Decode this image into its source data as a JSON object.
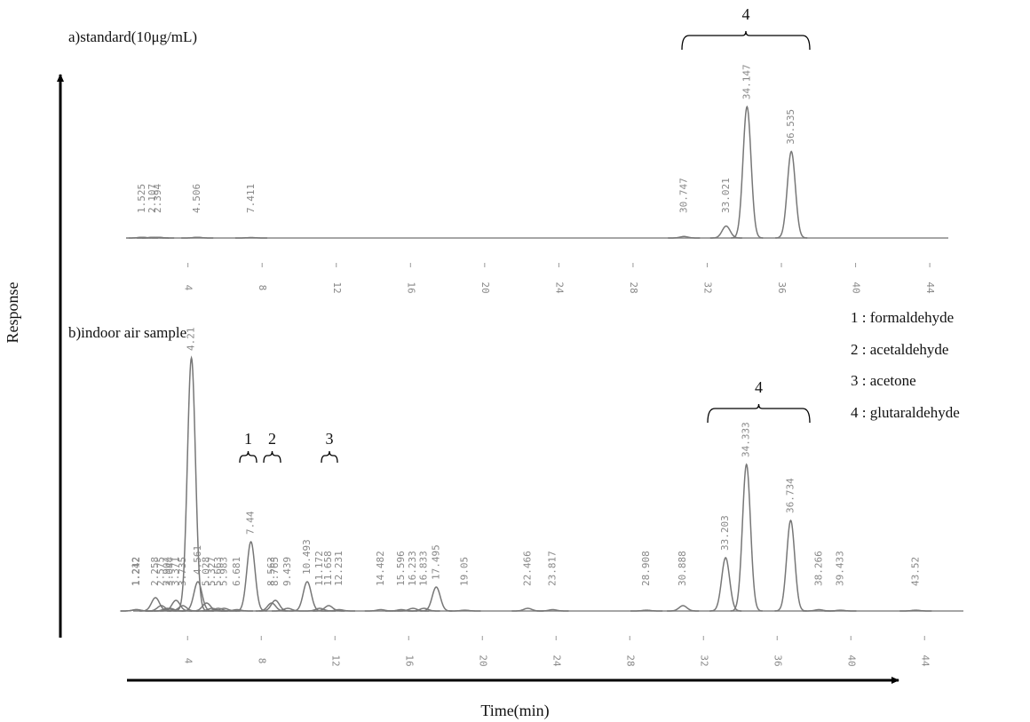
{
  "chart_data": [
    {
      "type": "chromatogram",
      "title": "a)standard(10μg/mL)",
      "x": [
        1.525,
        2.107,
        2.394,
        4.506,
        7.411,
        30.747,
        33.021,
        34.147,
        36.535
      ],
      "values": [
        0.5,
        0.5,
        0.5,
        0.5,
        0.3,
        1,
        8,
        88,
        58
      ],
      "xlim": [
        1,
        45
      ],
      "ylim": [
        0,
        100
      ],
      "xticks": [
        4,
        8,
        12,
        16,
        20,
        24,
        28,
        32,
        36,
        40,
        44
      ],
      "annotations": [
        "4"
      ]
    },
    {
      "type": "chromatogram",
      "title": "b)indoor air sample",
      "x": [
        1.212,
        1.242,
        2.258,
        2.575,
        2.904,
        3.044,
        3.371,
        3.735,
        4.21,
        4.561,
        5.028,
        5.327,
        5.663,
        5.983,
        6.681,
        7.44,
        8.563,
        8.765,
        9.439,
        10.493,
        11.172,
        11.658,
        12.231,
        14.482,
        15.596,
        16.233,
        16.833,
        17.495,
        19.05,
        22.466,
        23.817,
        28.908,
        30.888,
        33.203,
        34.333,
        36.734,
        38.266,
        39.433,
        43.52
      ],
      "values": [
        0.5,
        0.5,
        5,
        2,
        1,
        1,
        4,
        2,
        95,
        11,
        3,
        1,
        1,
        1,
        0.5,
        26,
        3,
        4,
        1,
        11,
        1,
        2,
        0.5,
        0.5,
        0.5,
        1,
        1,
        9,
        0.3,
        1,
        0.5,
        0.3,
        2,
        20,
        55,
        34,
        0.5,
        0.3,
        0.3
      ],
      "xlim": [
        1,
        45
      ],
      "ylim": [
        0,
        100
      ],
      "xticks": [
        4,
        8,
        12,
        16,
        20,
        24,
        28,
        32,
        36,
        40,
        44
      ],
      "annotations": [
        "1",
        "2",
        "3",
        "4"
      ]
    }
  ],
  "y_axis_label": "Response",
  "x_axis_label": "Time(min)",
  "legend": [
    "1 : formaldehyde",
    "2 : acetaldehyde",
    "3 : acetone",
    "4 : glutaraldehyde"
  ]
}
